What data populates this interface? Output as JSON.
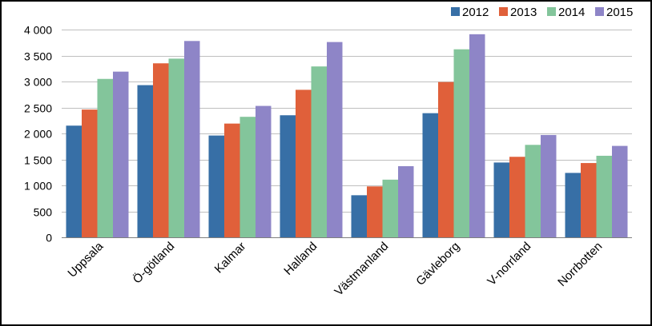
{
  "chart_data": {
    "type": "bar",
    "title": "",
    "xlabel": "",
    "ylabel": "",
    "categories": [
      "Uppsala",
      "Ö-götland",
      "Kalmar",
      "Halland",
      "Västmanland",
      "Gävleborg",
      "V-norrland",
      "Norrbotten"
    ],
    "series": [
      {
        "name": "2012",
        "color": "#376fa6",
        "values": [
          2150,
          2930,
          1960,
          2350,
          810,
          2390,
          1440,
          1240
        ]
      },
      {
        "name": "2013",
        "color": "#e0603a",
        "values": [
          2460,
          3350,
          2190,
          2840,
          980,
          2990,
          1550,
          1430
        ]
      },
      {
        "name": "2014",
        "color": "#83c59b",
        "values": [
          3050,
          3440,
          2320,
          3290,
          1110,
          3620,
          1780,
          1570
        ]
      },
      {
        "name": "2015",
        "color": "#8e85c7",
        "values": [
          3190,
          3780,
          2530,
          3760,
          1370,
          3910,
          1970,
          1760
        ]
      }
    ],
    "ylim": [
      0,
      4000
    ],
    "yticks": [
      0,
      500,
      1000,
      1500,
      2000,
      2500,
      3000,
      3500,
      4000
    ],
    "ytick_labels": [
      "0",
      "500",
      "1 000",
      "1 500",
      "2 000",
      "2 500",
      "3 000",
      "3 500",
      "4 000"
    ],
    "grid": true,
    "legend_position": "top-right"
  }
}
